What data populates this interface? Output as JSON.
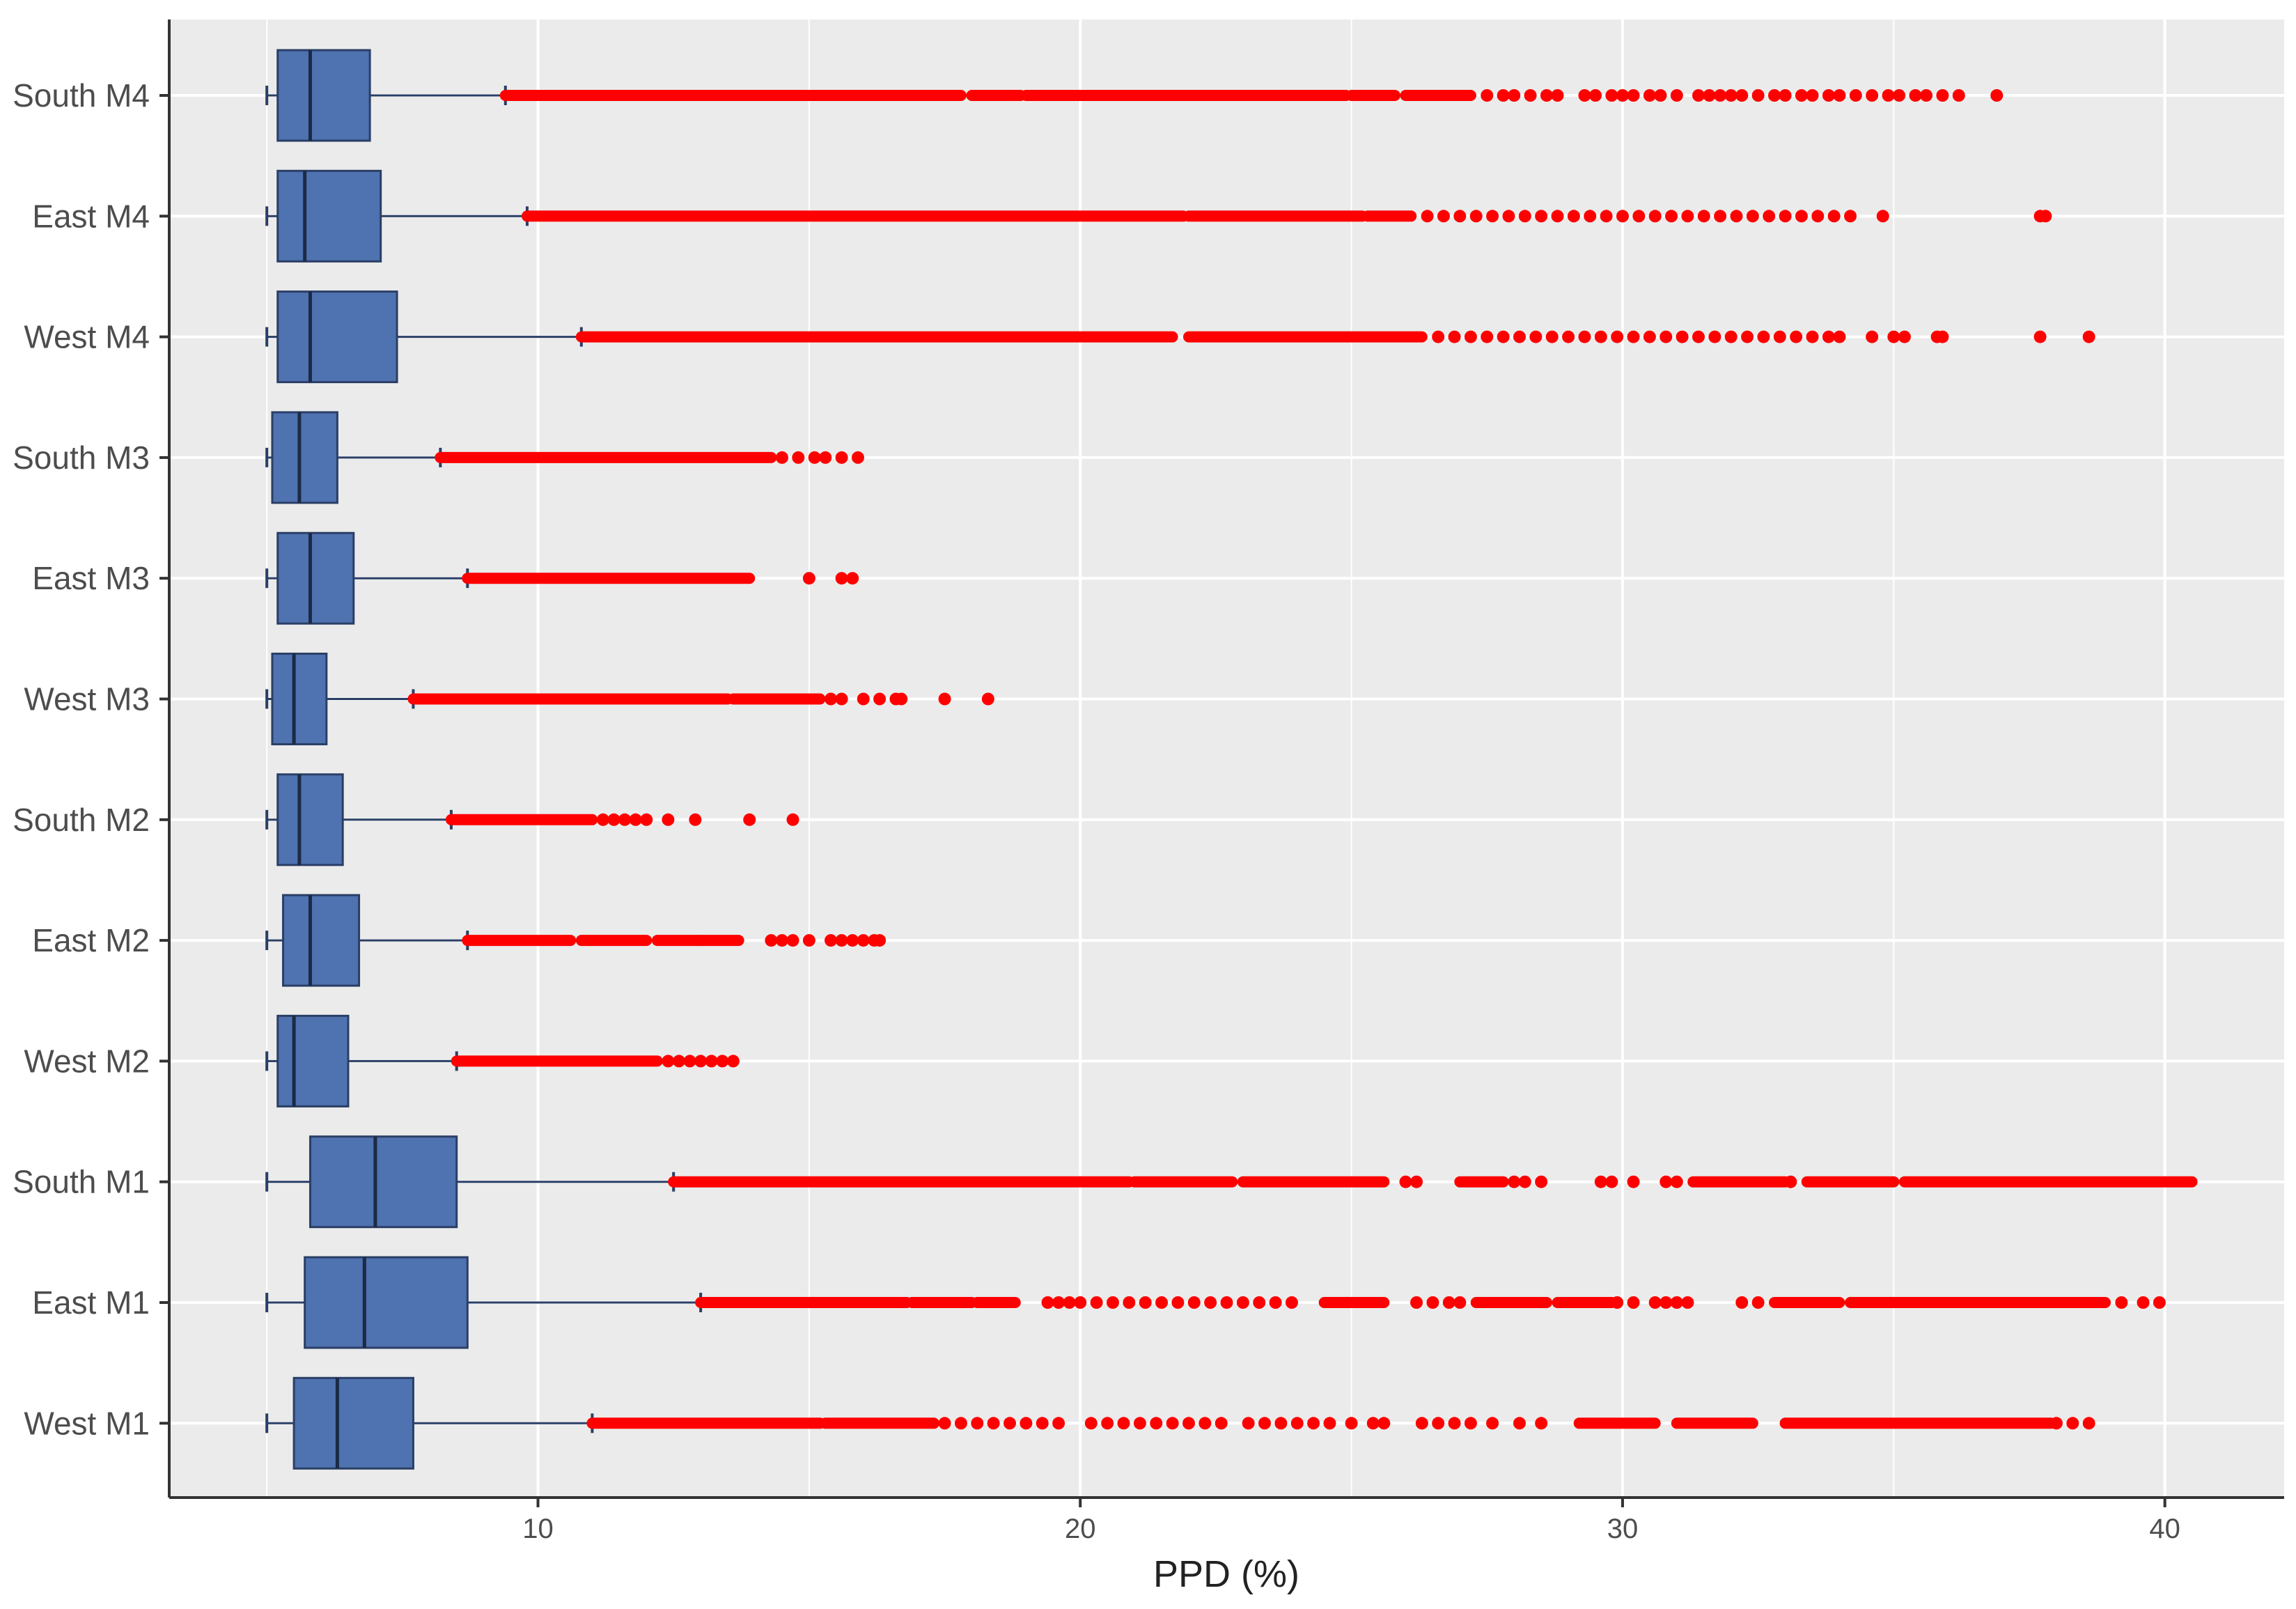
{
  "chart_data": {
    "type": "boxplot",
    "orientation": "horizontal",
    "title": "",
    "xlabel": "PPD  (%)",
    "ylabel": "",
    "xlim": [
      3.2,
      42.2
    ],
    "x_ticks": [
      10,
      20,
      30,
      40
    ],
    "x_tick_labels": [
      "10",
      "20",
      "30",
      "40"
    ],
    "grid": true,
    "colors": {
      "panel_background": "#ebebeb",
      "grid": "#ffffff",
      "box_fill": "#4f72b0",
      "box_stroke": "#2a3f66",
      "outlier": "#ff0000",
      "axis": "#333333"
    },
    "categories": [
      "South M4",
      "East M4",
      "West M4",
      "South M3",
      "East M3",
      "West M3",
      "South M2",
      "East M2",
      "West M2",
      "South M1",
      "East M1",
      "West M1"
    ],
    "boxes": [
      {
        "name": "South M4",
        "whisker_low": 5.0,
        "q1": 5.2,
        "median": 5.8,
        "q3": 6.9,
        "whisker_high": 9.4,
        "outlier_segments": [
          [
            9.4,
            17.8
          ],
          [
            18.0,
            18.9
          ],
          [
            19.0,
            24.9
          ],
          [
            25.0,
            25.8
          ],
          [
            26.0,
            27.2
          ]
        ],
        "outlier_points": [
          27.5,
          27.8,
          28.0,
          28.3,
          28.6,
          28.8,
          29.3,
          29.5,
          29.8,
          30.0,
          30.2,
          30.5,
          30.7,
          31.0,
          31.4,
          31.6,
          31.8,
          32.0,
          32.2,
          32.5,
          32.8,
          33.0,
          33.3,
          33.5,
          33.8,
          34.0,
          34.3,
          34.6,
          34.9,
          35.1,
          35.4,
          35.6,
          35.9,
          36.2,
          36.9
        ]
      },
      {
        "name": "East M4",
        "whisker_low": 5.0,
        "q1": 5.2,
        "median": 5.7,
        "q3": 7.1,
        "whisker_high": 9.8,
        "outlier_segments": [
          [
            9.8,
            21.9
          ],
          [
            22.0,
            25.2
          ],
          [
            25.3,
            26.1
          ]
        ],
        "outlier_points": [
          26.4,
          26.7,
          27.0,
          27.3,
          27.6,
          27.9,
          28.2,
          28.5,
          28.8,
          29.1,
          29.4,
          29.7,
          30.0,
          30.3,
          30.6,
          30.9,
          31.2,
          31.5,
          31.8,
          32.1,
          32.4,
          32.7,
          33.0,
          33.3,
          33.6,
          33.9,
          34.2,
          34.8,
          37.7,
          37.8
        ]
      },
      {
        "name": "West M4",
        "whisker_low": 5.0,
        "q1": 5.2,
        "median": 5.8,
        "q3": 7.4,
        "whisker_high": 10.8,
        "outlier_segments": [
          [
            10.8,
            21.7
          ],
          [
            22.0,
            26.3
          ]
        ],
        "outlier_points": [
          26.6,
          26.9,
          27.2,
          27.5,
          27.8,
          28.1,
          28.4,
          28.7,
          29.0,
          29.3,
          29.6,
          29.9,
          30.2,
          30.5,
          30.8,
          31.1,
          31.4,
          31.7,
          32.0,
          32.3,
          32.6,
          32.9,
          33.2,
          33.5,
          33.8,
          34.0,
          34.6,
          35.0,
          35.2,
          35.8,
          35.9,
          37.7,
          38.6
        ]
      },
      {
        "name": "South M3",
        "whisker_low": 5.0,
        "q1": 5.1,
        "median": 5.6,
        "q3": 6.3,
        "whisker_high": 8.2,
        "outlier_segments": [
          [
            8.2,
            14.3
          ]
        ],
        "outlier_points": [
          14.5,
          14.8,
          15.1,
          15.3,
          15.6,
          15.9
        ]
      },
      {
        "name": "East M3",
        "whisker_low": 5.0,
        "q1": 5.2,
        "median": 5.8,
        "q3": 6.6,
        "whisker_high": 8.7,
        "outlier_segments": [
          [
            8.7,
            13.9
          ]
        ],
        "outlier_points": [
          15.0,
          15.6,
          15.8
        ]
      },
      {
        "name": "West M3",
        "whisker_low": 5.0,
        "q1": 5.1,
        "median": 5.5,
        "q3": 6.1,
        "whisker_high": 7.7,
        "outlier_segments": [
          [
            7.7,
            13.5
          ],
          [
            13.6,
            15.2
          ]
        ],
        "outlier_points": [
          15.4,
          15.6,
          16.0,
          16.3,
          16.6,
          16.7,
          17.5,
          18.3
        ]
      },
      {
        "name": "South M2",
        "whisker_low": 5.0,
        "q1": 5.2,
        "median": 5.6,
        "q3": 6.4,
        "whisker_high": 8.4,
        "outlier_segments": [
          [
            8.4,
            11.0
          ]
        ],
        "outlier_points": [
          11.2,
          11.4,
          11.6,
          11.8,
          12.0,
          12.4,
          12.9,
          13.9,
          14.7
        ]
      },
      {
        "name": "East M2",
        "whisker_low": 5.0,
        "q1": 5.3,
        "median": 5.8,
        "q3": 6.7,
        "whisker_high": 8.7,
        "outlier_segments": [
          [
            8.7,
            10.6
          ],
          [
            10.8,
            12.0
          ],
          [
            12.2,
            13.0
          ],
          [
            13.0,
            13.7
          ]
        ],
        "outlier_points": [
          14.3,
          14.5,
          14.7,
          15.0,
          15.4,
          15.6,
          15.8,
          16.0,
          16.2,
          16.3
        ]
      },
      {
        "name": "West M2",
        "whisker_low": 5.0,
        "q1": 5.2,
        "median": 5.5,
        "q3": 6.5,
        "whisker_high": 8.5,
        "outlier_segments": [
          [
            8.5,
            12.2
          ]
        ],
        "outlier_points": [
          12.4,
          12.6,
          12.8,
          13.0,
          13.2,
          13.4,
          13.6
        ]
      },
      {
        "name": "South M1",
        "whisker_low": 5.0,
        "q1": 5.8,
        "median": 7.0,
        "q3": 8.5,
        "whisker_high": 12.5,
        "outlier_segments": [
          [
            12.5,
            20.9
          ],
          [
            21.0,
            22.8
          ],
          [
            23.0,
            25.6
          ],
          [
            27.0,
            27.8
          ],
          [
            31.3,
            33.0
          ],
          [
            33.4,
            35.0
          ],
          [
            35.2,
            40.5
          ]
        ],
        "outlier_points": [
          26.0,
          26.2,
          28.0,
          28.2,
          28.5,
          29.6,
          29.8,
          30.2,
          30.8,
          31.0,
          33.1
        ]
      },
      {
        "name": "East M1",
        "whisker_low": 5.0,
        "q1": 5.7,
        "median": 6.8,
        "q3": 8.7,
        "whisker_high": 13.0,
        "outlier_segments": [
          [
            13.0,
            16.8
          ],
          [
            16.9,
            18.0
          ],
          [
            18.1,
            18.8
          ],
          [
            24.5,
            25.6
          ],
          [
            27.3,
            28.6
          ],
          [
            28.8,
            29.8
          ],
          [
            32.8,
            34.0
          ],
          [
            34.2,
            38.9
          ]
        ],
        "outlier_points": [
          19.4,
          19.6,
          19.8,
          20.0,
          20.3,
          20.6,
          20.9,
          21.2,
          21.5,
          21.8,
          22.1,
          22.4,
          22.7,
          23.0,
          23.3,
          23.6,
          23.9,
          26.2,
          26.5,
          26.8,
          27.0,
          29.9,
          30.2,
          30.6,
          30.8,
          31.0,
          31.2,
          32.2,
          32.5,
          39.2,
          39.6,
          39.9
        ]
      },
      {
        "name": "West M1",
        "whisker_low": 5.0,
        "q1": 5.5,
        "median": 6.3,
        "q3": 7.7,
        "whisker_high": 11.0,
        "outlier_segments": [
          [
            11.0,
            15.2
          ],
          [
            15.3,
            17.3
          ],
          [
            29.2,
            30.6
          ],
          [
            31.0,
            32.4
          ],
          [
            33.0,
            37.9
          ]
        ],
        "outlier_points": [
          17.5,
          17.8,
          18.1,
          18.4,
          18.7,
          19.0,
          19.3,
          19.6,
          20.2,
          20.5,
          20.8,
          21.1,
          21.4,
          21.7,
          22.0,
          22.3,
          22.6,
          23.1,
          23.4,
          23.7,
          24.0,
          24.3,
          24.6,
          25.0,
          25.4,
          25.6,
          26.3,
          26.6,
          26.9,
          27.2,
          27.6,
          28.1,
          28.5,
          38.0,
          38.3,
          38.6
        ]
      }
    ]
  }
}
